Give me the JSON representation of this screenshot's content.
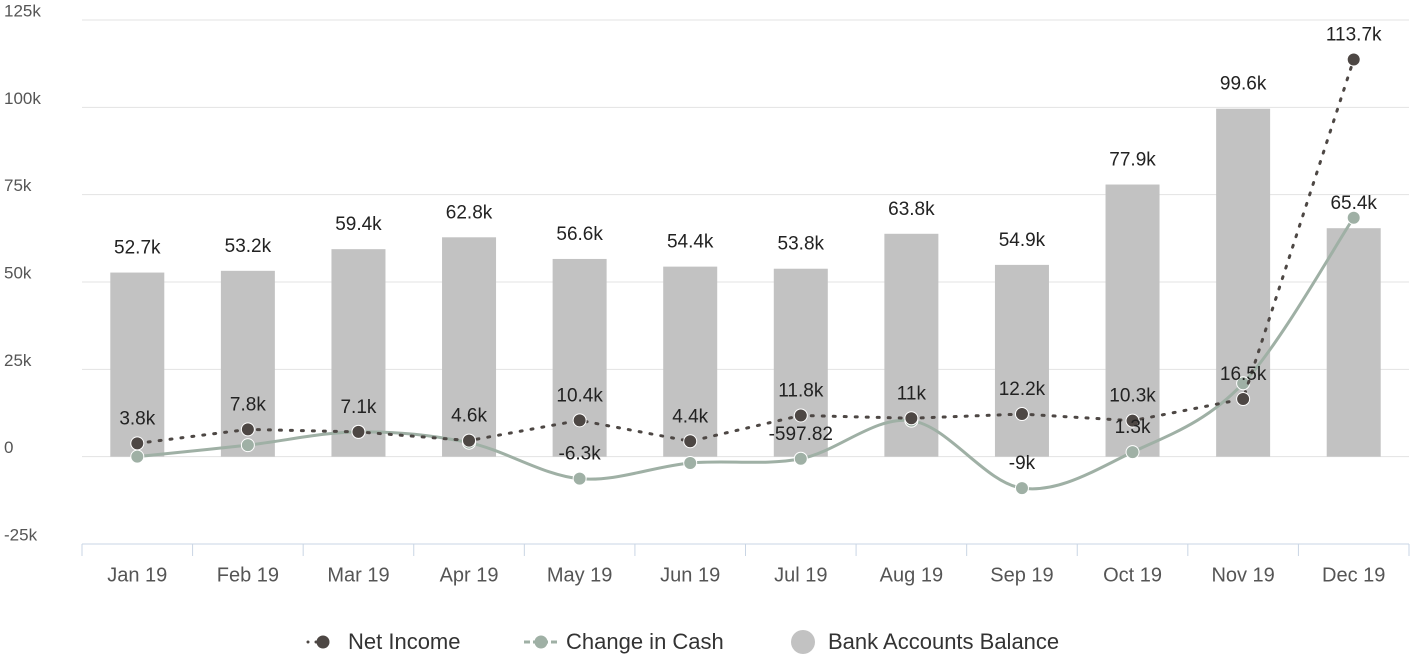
{
  "chart_data": {
    "type": "bar",
    "categories": [
      "Jan 19",
      "Feb 19",
      "Mar 19",
      "Apr 19",
      "May 19",
      "Jun 19",
      "Jul 19",
      "Aug 19",
      "Sep 19",
      "Oct 19",
      "Nov 19",
      "Dec 19"
    ],
    "ylim": [
      -25000,
      125000
    ],
    "yticks": [
      {
        "value": -25000,
        "label": "-25k"
      },
      0,
      {
        "value": 25000,
        "label": "25k"
      },
      {
        "value": 50000,
        "label": "50k"
      },
      {
        "value": 75000,
        "label": "75k"
      },
      {
        "value": 100000,
        "label": "100k"
      },
      {
        "value": 125000,
        "label": "125k"
      }
    ],
    "grid": true,
    "legend": "bottom",
    "series": [
      {
        "name": "Net Income",
        "type": "line",
        "style": "dotted",
        "color": "#4d4744",
        "values": [
          3800,
          7800,
          7100,
          4600,
          10400,
          4400,
          11800,
          11000,
          12200,
          10300,
          16500,
          113700
        ],
        "value_labels": [
          "3.8k",
          "7.8k",
          "7.1k",
          "4.6k",
          "10.4k",
          "4.4k",
          "11.8k",
          "11k",
          "12.2k",
          "10.3k",
          "16.5k",
          "113.7k"
        ]
      },
      {
        "name": "Change in Cash",
        "type": "line",
        "style": "smooth",
        "color": "#9fb0a5",
        "values": [
          0,
          3300,
          7100,
          4000,
          -6300,
          -1800,
          -597.82,
          10300,
          -9000,
          1300,
          21000,
          68400
        ],
        "value_labels": [
          null,
          null,
          null,
          null,
          "-6.3k",
          null,
          "-597.82",
          null,
          "-9k",
          "1.3k",
          null,
          null
        ]
      },
      {
        "name": "Bank Accounts Balance",
        "type": "bar",
        "color": "#c2c2c2",
        "values": [
          52700,
          53200,
          59400,
          62800,
          56600,
          54400,
          53800,
          63800,
          54900,
          77900,
          99600,
          65400
        ],
        "value_labels": [
          "52.7k",
          "53.2k",
          "59.4k",
          "62.8k",
          "56.6k",
          "54.4k",
          "53.8k",
          "63.8k",
          "54.9k",
          "77.9k",
          "99.6k",
          "65.4k"
        ]
      }
    ]
  }
}
